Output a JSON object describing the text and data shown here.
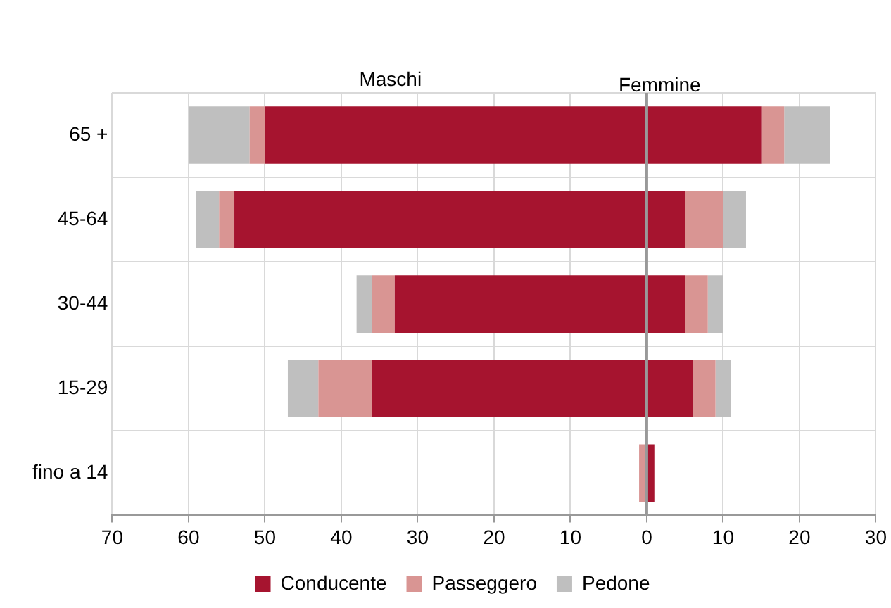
{
  "chart_data": {
    "type": "bar",
    "orientation": "horizontal",
    "stacked": true,
    "categories": [
      "65 +",
      "45-64",
      "30-44",
      "15-29",
      "fino a 14"
    ],
    "series": [
      {
        "name": "Conducente",
        "color": "#a6142f",
        "values": [
          -50,
          -54,
          -33,
          -36,
          0
        ]
      },
      {
        "name": "Passeggero",
        "color": "#d99593",
        "values": [
          -2,
          -2,
          -3,
          -7,
          -1
        ]
      },
      {
        "name": "Pedone",
        "color": "#bfbfbf",
        "values": [
          -8,
          -3,
          -2,
          -4,
          0
        ]
      },
      {
        "color": "#a6142f",
        "values": [
          15,
          5,
          5,
          6,
          1
        ]
      },
      {
        "color": "#d99593",
        "values": [
          3,
          5,
          3,
          3,
          0
        ]
      },
      {
        "color": "#bfbfbf",
        "values": [
          6,
          3,
          2,
          2,
          0
        ]
      }
    ],
    "xlim": [
      -70,
      30
    ],
    "xticks": [
      {
        "value": -70,
        "label": "70"
      },
      {
        "value": -60,
        "label": "60"
      },
      {
        "value": -50,
        "label": "50"
      },
      {
        "value": -40,
        "label": "40"
      },
      {
        "value": -30,
        "label": "30"
      },
      {
        "value": -20,
        "label": "20"
      },
      {
        "value": -10,
        "label": "10"
      },
      0,
      10,
      20,
      30
    ],
    "annotations": [
      "Maschi",
      "Femmine"
    ],
    "grid": true,
    "legend": "bottom"
  }
}
